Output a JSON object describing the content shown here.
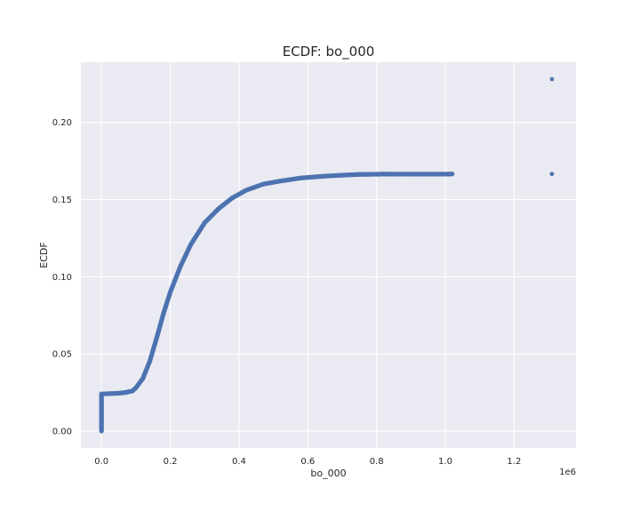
{
  "chart_data": {
    "type": "scatter",
    "title": "ECDF: bo_000",
    "xlabel": "bo_000",
    "ylabel": "ECDF",
    "x_offset_text": "1e6",
    "xlim": [
      -60000,
      1380000
    ],
    "ylim": [
      -0.011,
      0.239
    ],
    "grid": true,
    "background": "#eaeaf2",
    "marker_color": "#4c72b0",
    "x_ticks": [
      0.0,
      0.2,
      0.4,
      0.6,
      0.8,
      1.0,
      1.2
    ],
    "x_tick_labels": [
      "0.0",
      "0.2",
      "0.4",
      "0.6",
      "0.8",
      "1.0",
      "1.2"
    ],
    "y_ticks": [
      0.0,
      0.05,
      0.1,
      0.15,
      0.2
    ],
    "y_tick_labels": [
      "0.00",
      "0.05",
      "0.10",
      "0.15",
      "0.20"
    ],
    "series": [
      {
        "points": [
          [
            0,
            0.0
          ],
          [
            0,
            0.005
          ],
          [
            0,
            0.01
          ],
          [
            0,
            0.015
          ],
          [
            0,
            0.02
          ],
          [
            0,
            0.024
          ],
          [
            50000,
            0.0245
          ],
          [
            70000,
            0.025
          ],
          [
            90000,
            0.026
          ],
          [
            100000,
            0.028
          ],
          [
            120000,
            0.034
          ],
          [
            140000,
            0.045
          ],
          [
            160000,
            0.06
          ],
          [
            180000,
            0.076
          ],
          [
            200000,
            0.09
          ],
          [
            230000,
            0.107
          ],
          [
            260000,
            0.121
          ],
          [
            300000,
            0.135
          ],
          [
            340000,
            0.144
          ],
          [
            380000,
            0.151
          ],
          [
            420000,
            0.156
          ],
          [
            470000,
            0.16
          ],
          [
            520000,
            0.162
          ],
          [
            580000,
            0.164
          ],
          [
            650000,
            0.1652
          ],
          [
            700000,
            0.1658
          ],
          [
            750000,
            0.1663
          ],
          [
            800000,
            0.1664
          ],
          [
            820000,
            0.1665
          ],
          [
            840000,
            0.1665
          ],
          [
            1010000,
            0.1665
          ],
          [
            1020000,
            0.1666
          ],
          [
            1310000,
            0.1666
          ],
          [
            1310000,
            0.228
          ]
        ]
      }
    ]
  }
}
